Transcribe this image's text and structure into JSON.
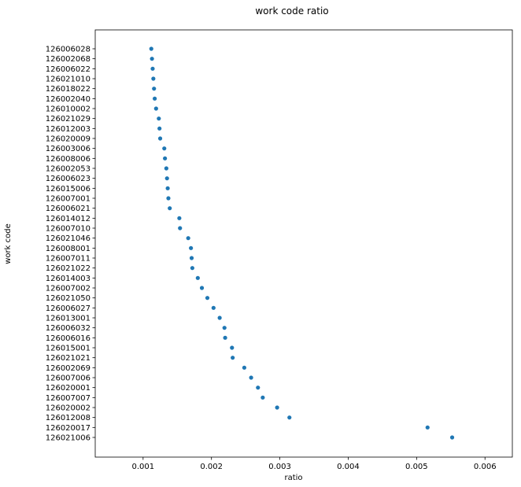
{
  "chart_data": {
    "type": "scatter",
    "title": "work code ratio",
    "xlabel": "ratio",
    "ylabel": "work code",
    "xlim": [
      0.0003,
      0.0064
    ],
    "xticks": [
      0.001,
      0.002,
      0.003,
      0.004,
      0.005,
      0.006
    ],
    "xtick_labels": [
      "0.001",
      "0.002",
      "0.003",
      "0.004",
      "0.005",
      "0.006"
    ],
    "grid": false,
    "marker_color": "#1f77b4",
    "categories": [
      "126006028",
      "126002068",
      "126006022",
      "126021010",
      "126018022",
      "126002040",
      "126010002",
      "126021029",
      "126012003",
      "126020009",
      "126003006",
      "126008006",
      "126002053",
      "126006023",
      "126015006",
      "126007001",
      "126006021",
      "126014012",
      "126007010",
      "126021046",
      "126008001",
      "126007011",
      "126021022",
      "126014003",
      "126007002",
      "126021050",
      "126006027",
      "126013001",
      "126006032",
      "126006016",
      "126015001",
      "126021021",
      "126002069",
      "126007006",
      "126020001",
      "126007007",
      "126020002",
      "126012008",
      "126020017",
      "126021006"
    ],
    "values": [
      0.00112,
      0.00113,
      0.00114,
      0.00115,
      0.00116,
      0.00117,
      0.00119,
      0.00123,
      0.00124,
      0.00125,
      0.00131,
      0.00132,
      0.00134,
      0.00135,
      0.00136,
      0.00137,
      0.00139,
      0.00153,
      0.00154,
      0.00166,
      0.0017,
      0.00171,
      0.00172,
      0.0018,
      0.00186,
      0.00194,
      0.00203,
      0.00212,
      0.00219,
      0.0022,
      0.0023,
      0.00231,
      0.00248,
      0.00258,
      0.00268,
      0.00275,
      0.00296,
      0.00314,
      0.00516,
      0.00552
    ]
  }
}
